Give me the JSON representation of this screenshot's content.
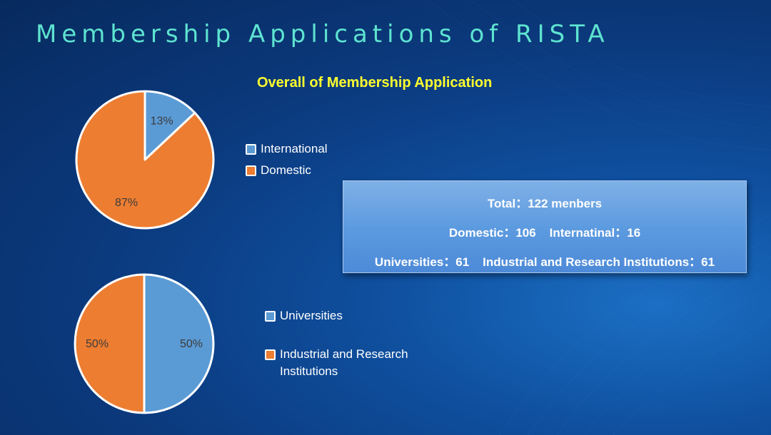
{
  "slide": {
    "title": "Membership Applications of RISTA"
  },
  "chart_data": [
    {
      "type": "pie",
      "title": "Overall of Membership Application",
      "categories": [
        "International",
        "Domestic"
      ],
      "values": [
        13,
        87
      ],
      "labels": [
        "13%",
        "87%"
      ],
      "colors": [
        "#5b9bd5",
        "#ed7d31"
      ],
      "legend_position": "right"
    },
    {
      "type": "pie",
      "title": "",
      "categories": [
        "Universities",
        "Industrial and Research Institutions"
      ],
      "values": [
        50,
        50
      ],
      "labels": [
        "50%",
        "50%"
      ],
      "colors": [
        "#5b9bd5",
        "#ed7d31"
      ],
      "legend_position": "right"
    }
  ],
  "legend2": {
    "item2_line1": "Industrial and Research",
    "item2_line2": "Institutions"
  },
  "summary": {
    "line1": "Total：122 menbers",
    "line2": "Domestic：106    Internatinal：16",
    "line3": "Universities：61    Industrial and Research Institutions：61"
  },
  "colors": {
    "background": "#0b3a7e",
    "title": "#5ee3d0",
    "chart_title": "#ffff2e",
    "blue": "#5b9bd5",
    "orange": "#ed7d31"
  }
}
